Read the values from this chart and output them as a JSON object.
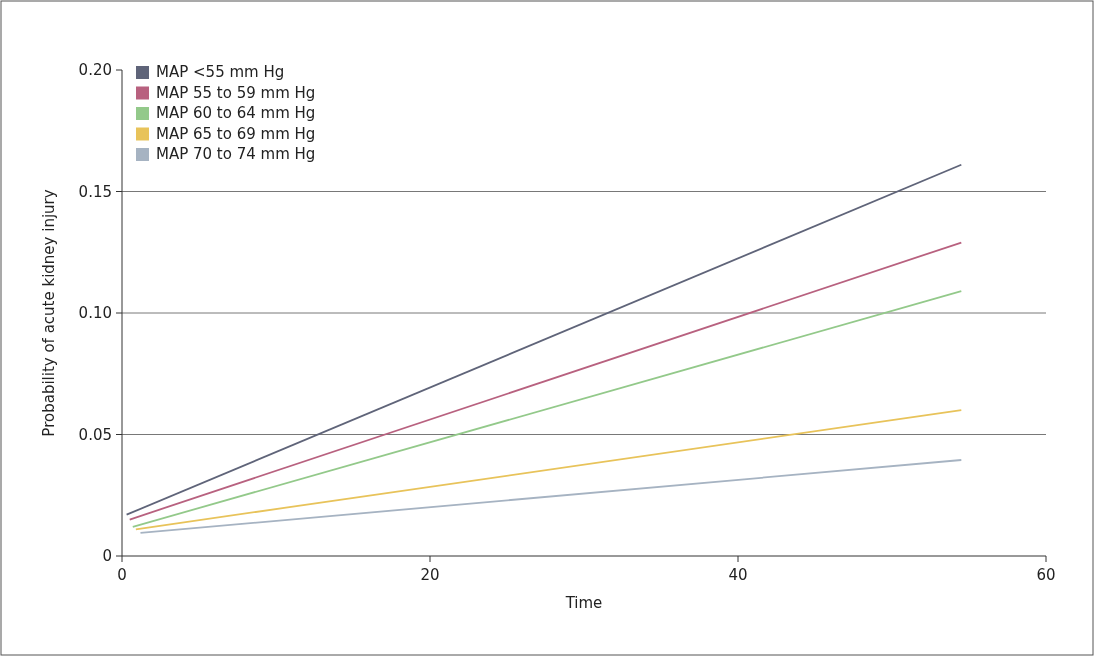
{
  "chart_data": {
    "type": "line",
    "xlabel": "Time",
    "ylabel": "Probability of acute kidney injury",
    "xlim": [
      0,
      60
    ],
    "xticks": [
      0,
      20,
      40,
      60
    ],
    "ylim": [
      0,
      0.2
    ],
    "yticks": [
      0,
      {
        "value": 0.05,
        "label": "0.05"
      },
      {
        "value": 0.1,
        "label": "0.10"
      },
      {
        "value": 0.15,
        "label": "0.15"
      },
      {
        "value": 0.2,
        "label": "0.20"
      }
    ],
    "grid": "y",
    "legend": "top left",
    "marker": "none",
    "line_style": "solid",
    "series": [
      {
        "name": "MAP <55 mm Hg",
        "color": "#5f6479",
        "x": [
          0.3,
          54.5
        ],
        "values": [
          0.017,
          0.161
        ]
      },
      {
        "name": "MAP 55 to 59 mm Hg",
        "color": "#b8617f",
        "x": [
          0.5,
          54.5
        ],
        "values": [
          0.015,
          0.129
        ]
      },
      {
        "name": "MAP 60 to 64 mm Hg",
        "color": "#93c98a",
        "x": [
          0.7,
          54.5
        ],
        "values": [
          0.012,
          0.109
        ]
      },
      {
        "name": "MAP 65 to 69 mm Hg",
        "color": "#e8c35a",
        "x": [
          0.9,
          54.5
        ],
        "values": [
          0.011,
          0.06
        ]
      },
      {
        "name": "MAP 70 to 74 mm Hg",
        "color": "#a6b3c2",
        "x": [
          1.2,
          54.5
        ],
        "values": [
          0.0095,
          0.0395
        ]
      }
    ]
  }
}
